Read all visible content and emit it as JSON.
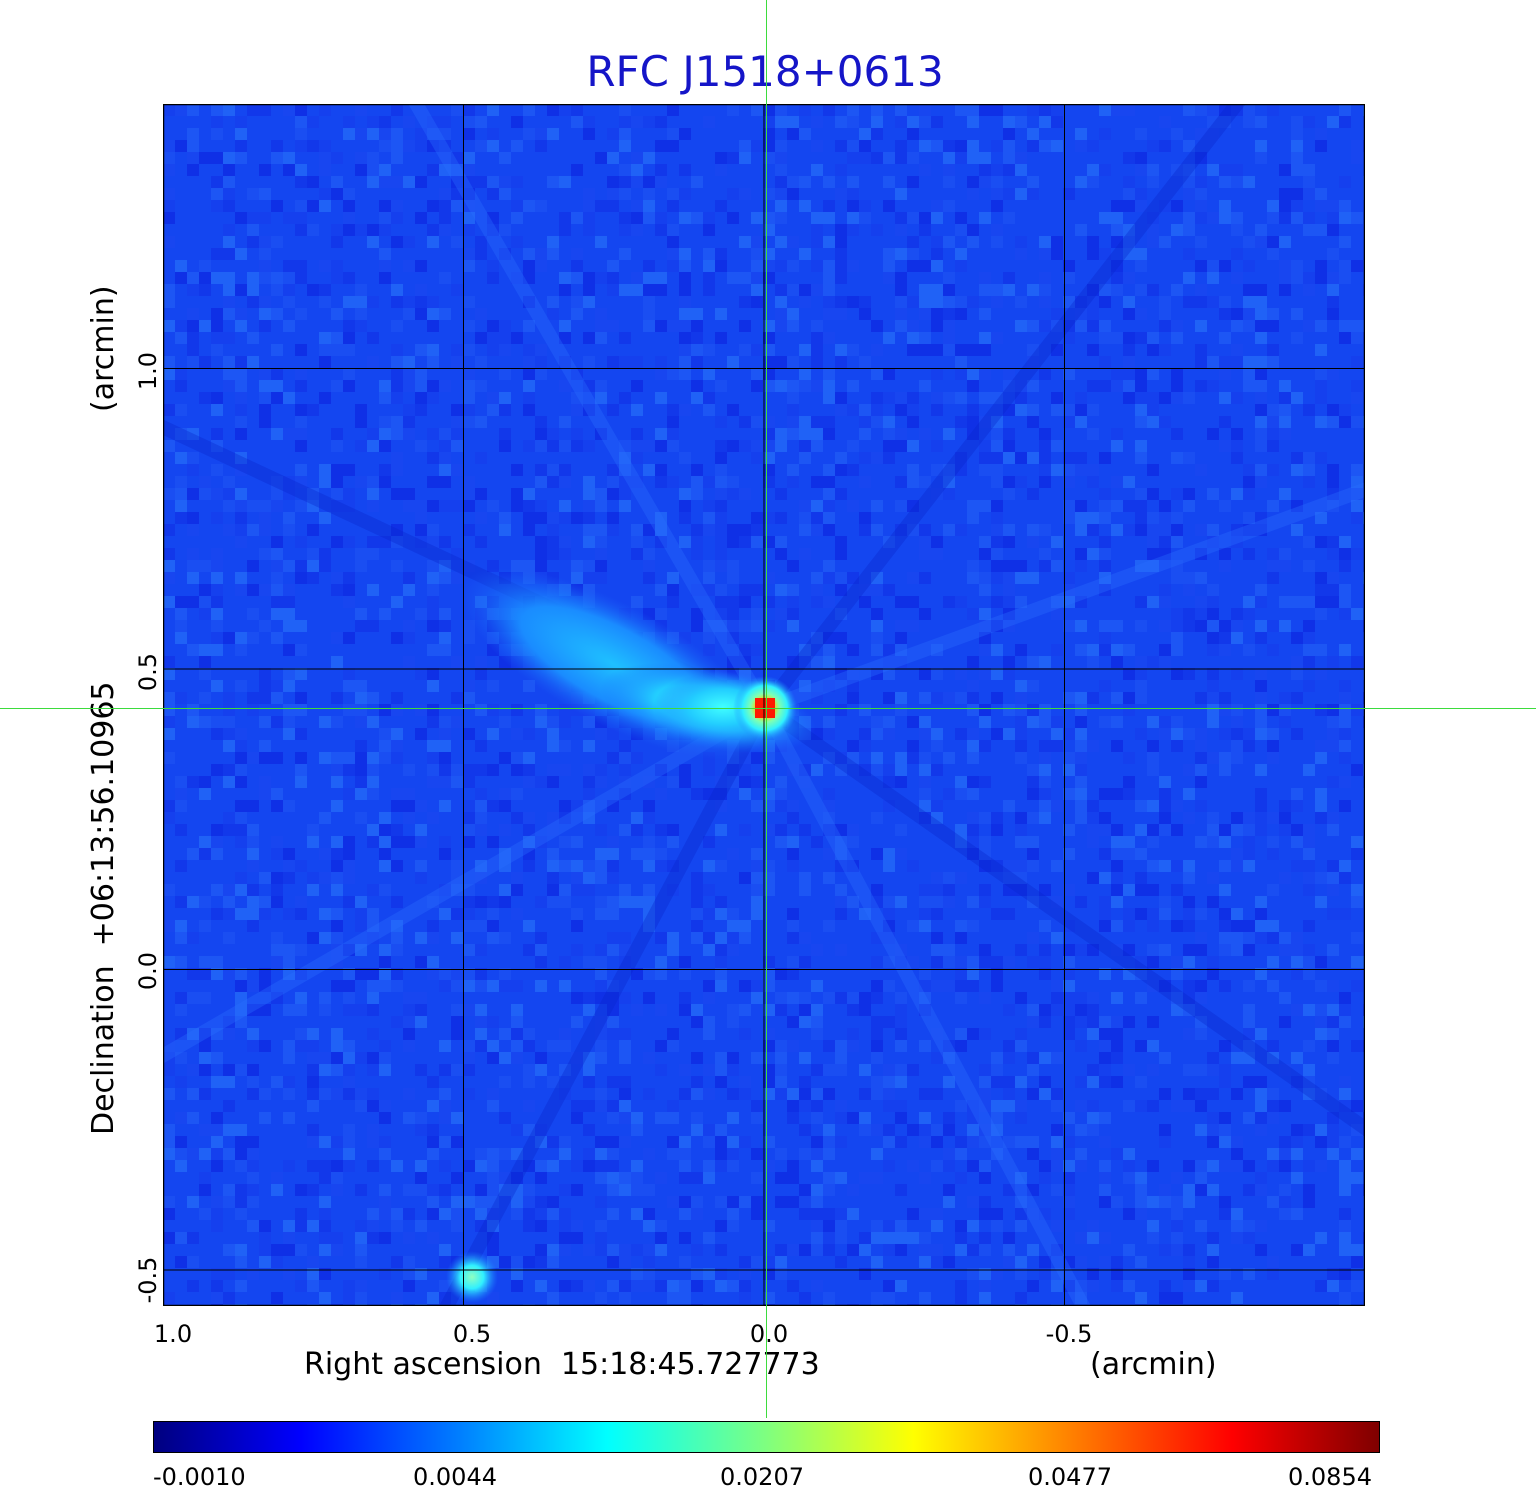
{
  "title": "RFC J1518+0613",
  "colors": {
    "title": "#1515c8",
    "crosshair": "#3ddc3d",
    "grid": "#000000",
    "background_map": "#1446f0"
  },
  "axes": {
    "x_label": "Right ascension  15:18:45.727773",
    "x_unit": "(arcmin)",
    "y_label": "Declination  +06:13:56.10965",
    "y_unit": "(arcmin)",
    "x_ticks": [
      "1.0",
      "0.5",
      "0.0",
      "-0.5"
    ],
    "y_ticks": [
      "1.0",
      "0.5",
      "0.0",
      "-0.5"
    ],
    "xlim": [
      1.0,
      -1.0
    ],
    "ylim": [
      -0.56,
      1.44
    ],
    "grid": true
  },
  "colorbar": {
    "colormap": "jet",
    "ticks": [
      "-0.0010",
      "0.0044",
      "0.0207",
      "0.0477",
      "0.0854"
    ]
  },
  "sources": [
    {
      "ra_arcmin": 0.0,
      "dec_arcmin": 0.44,
      "peak": 0.0854
    },
    {
      "ra_arcmin": 0.49,
      "dec_arcmin": -0.51,
      "peak": 0.012
    }
  ]
}
